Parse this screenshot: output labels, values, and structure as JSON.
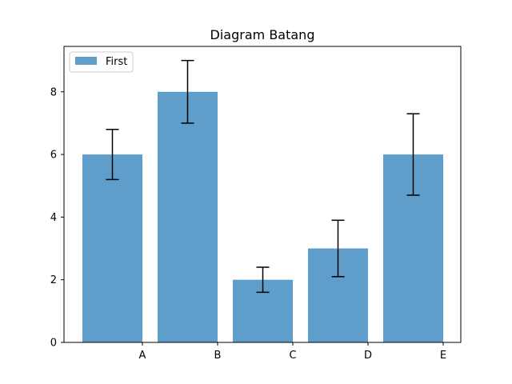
{
  "chart_data": {
    "type": "bar",
    "title": "Diagram Batang",
    "xlabel": "",
    "ylabel": "",
    "categories": [
      "A",
      "B",
      "C",
      "D",
      "E"
    ],
    "series": [
      {
        "name": "First",
        "values": [
          6,
          8,
          2,
          3,
          6
        ],
        "error_low": [
          5.2,
          7.0,
          1.6,
          2.1,
          4.7
        ],
        "error_high": [
          6.8,
          9.0,
          2.4,
          3.9,
          7.3
        ],
        "color": "#5f9ecb"
      }
    ],
    "ylim": [
      0,
      9.45
    ],
    "yticks": [
      "0",
      "2",
      "4",
      "6",
      "8"
    ],
    "grid": false,
    "legend_position": "upper-left"
  }
}
